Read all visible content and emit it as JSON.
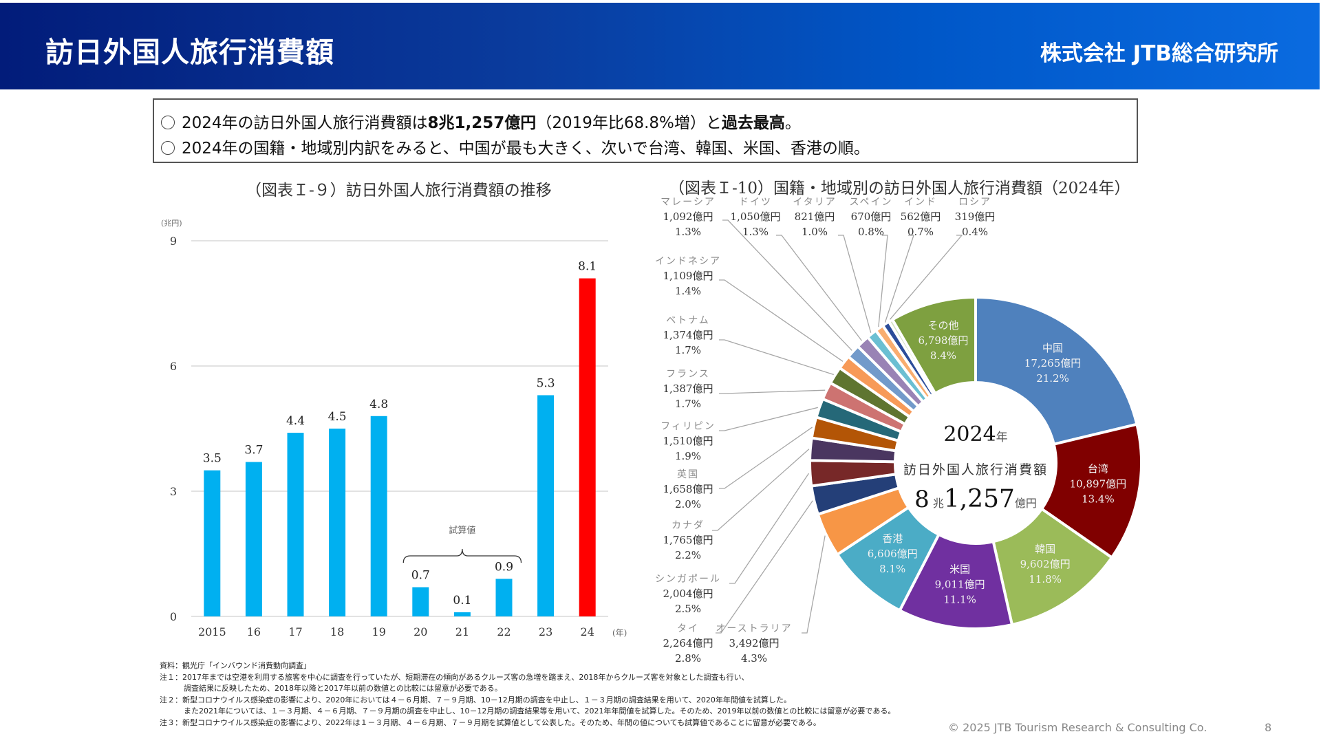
{
  "header": {
    "title": "訪日外国人旅行消費額",
    "company": "株式会社 JTB総合研究所",
    "gradient_start": "#021c7a",
    "gradient_end": "#0a6be0"
  },
  "summary": {
    "line1_pre": "2024年の訪日外国人旅行消費額は",
    "line1_bold": "8兆1,257億円",
    "line1_mid": "（2019年比68.8%増）と",
    "line1_bold2": "過去最高",
    "line1_post": "。",
    "line2": "2024年の国籍・地域別内訳をみると、中国が最も大きく、次いで台湾、韓国、米国、香港の順。"
  },
  "chart_data": [
    {
      "type": "bar",
      "title": "（図表Ｉ-９）訪日外国人旅行消費額の推移",
      "ylabel": "(兆円)",
      "xlabel": "(年)",
      "categories": [
        "2015",
        "16",
        "17",
        "18",
        "19",
        "20",
        "21",
        "22",
        "23",
        "24"
      ],
      "values": [
        3.5,
        3.7,
        4.4,
        4.5,
        4.8,
        0.7,
        0.1,
        0.9,
        5.3,
        8.1
      ],
      "value_labels": [
        "3.5",
        "3.7",
        "4.4",
        "4.5",
        "4.8",
        "0.7",
        "0.1",
        "0.9",
        "5.3",
        "8.1"
      ],
      "highlight_index": 9,
      "bar_color": "#00b0f0",
      "highlight_color": "#ff0000",
      "ylim": [
        0,
        9
      ],
      "yticks": [
        0,
        3,
        6,
        9
      ],
      "grid": true,
      "annotation": {
        "text": "試算値",
        "from": "20",
        "to": "22"
      }
    },
    {
      "type": "pie",
      "donut": true,
      "title": "（図表Ｉ-10）国籍・地域別の訪日外国人旅行消費額（2024年）",
      "center": {
        "year": "2024",
        "year_unit": "年",
        "label": "訪日外国人旅行消費額",
        "amount_major": "8",
        "unit_major": "兆",
        "amount_minor": "1,257",
        "unit_minor": "億円"
      },
      "slices": [
        {
          "name": "中国",
          "value": 17265,
          "amount": "17,265億円",
          "pct": "21.2%",
          "color": "#4f81bd",
          "label_inside": true
        },
        {
          "name": "台湾",
          "value": 10897,
          "amount": "10,897億円",
          "pct": "13.4%",
          "color": "#800000",
          "label_inside": true
        },
        {
          "name": "韓国",
          "value": 9602,
          "amount": "9,602億円",
          "pct": "11.8%",
          "color": "#9bbb59",
          "label_inside": true
        },
        {
          "name": "米国",
          "value": 9011,
          "amount": "9,011億円",
          "pct": "11.1%",
          "color": "#7030a0",
          "label_inside": true
        },
        {
          "name": "香港",
          "value": 6606,
          "amount": "6,606億円",
          "pct": "8.1%",
          "color": "#4bacc6",
          "label_inside": true
        },
        {
          "name": "オーストラリア",
          "value": 3492,
          "amount": "3,492億円",
          "pct": "4.3%",
          "color": "#f79646",
          "label_inside": false
        },
        {
          "name": "タイ",
          "value": 2264,
          "amount": "2,264億円",
          "pct": "2.8%",
          "color": "#243f78",
          "label_inside": false
        },
        {
          "name": "シンガポール",
          "value": 2004,
          "amount": "2,004億円",
          "pct": "2.5%",
          "color": "#772828",
          "label_inside": false
        },
        {
          "name": "カナダ",
          "value": 1765,
          "amount": "1,765億円",
          "pct": "2.2%",
          "color": "#4a3660",
          "label_inside": false
        },
        {
          "name": "英国",
          "value": 1658,
          "amount": "1,658億円",
          "pct": "2.0%",
          "color": "#b35506",
          "label_inside": false
        },
        {
          "name": "フィリピン",
          "value": 1510,
          "amount": "1,510億円",
          "pct": "1.9%",
          "color": "#256878",
          "label_inside": false
        },
        {
          "name": "フランス",
          "value": 1387,
          "amount": "1,387億円",
          "pct": "1.7%",
          "color": "#cd7371",
          "label_inside": false
        },
        {
          "name": "ベトナム",
          "value": 1374,
          "amount": "1,374億円",
          "pct": "1.7%",
          "color": "#5f7530",
          "label_inside": false
        },
        {
          "name": "インドネシア",
          "value": 1109,
          "amount": "1,109億円",
          "pct": "1.4%",
          "color": "#f79a58",
          "label_inside": false
        },
        {
          "name": "マレーシア",
          "value": 1092,
          "amount": "1,092億円",
          "pct": "1.3%",
          "color": "#729aca",
          "label_inside": false
        },
        {
          "name": "ドイツ",
          "value": 1050,
          "amount": "1,050億円",
          "pct": "1.3%",
          "color": "#9983b5",
          "label_inside": false
        },
        {
          "name": "イタリア",
          "value": 821,
          "amount": "821億円",
          "pct": "1.0%",
          "color": "#6bbfd2",
          "label_inside": false
        },
        {
          "name": "スペイン",
          "value": 670,
          "amount": "670億円",
          "pct": "0.8%",
          "color": "#f9ad6f",
          "label_inside": false
        },
        {
          "name": "インド",
          "value": 562,
          "amount": "562億円",
          "pct": "0.7%",
          "color": "#2c4d9a",
          "label_inside": false
        },
        {
          "name": "ロシア",
          "value": 319,
          "amount": "319億円",
          "pct": "0.4%",
          "color": "#d4e3c2",
          "label_inside": false
        },
        {
          "name": "その他",
          "value": 6798,
          "amount": "6,798億円",
          "pct": "8.4%",
          "color": "#7ea040",
          "label_inside": true
        }
      ]
    }
  ],
  "notes": [
    "資料：観光庁「インバウンド消費動向調査」",
    "注１：2017年までは空港を利用する旅客を中心に調査を行っていたが、短期滞在の傾向があるクルーズ客の急増を踏まえ、2018年からクルーズ客を対象とした調査も行い、",
    "調査結果に反映したため、2018年以降と2017年以前の数値との比較には留意が必要である。",
    "注２：新型コロナウイルス感染症の影響により、2020年においては４－６月期、７－９月期、10－12月期の調査を中止し、１－３月期の調査結果を用いて、2020年年間値を試算した。",
    "また2021年については、１－３月期、４－６月期、７－９月期の調査を中止し、10－12月期の調査結果等を用いて、2021年年間値を試算した。そのため、2019年以前の数値との比較には留意が必要である。",
    "注３：新型コロナウイルス感染症の影響により、2022年は１－３月期、４－６月期、７－９月期を試算値として公表した。そのため、年間の値についても試算値であることに留意が必要である。"
  ],
  "footer": {
    "copyright": "© 2025 JTB Tourism Research & Consulting Co.",
    "page": "8"
  }
}
